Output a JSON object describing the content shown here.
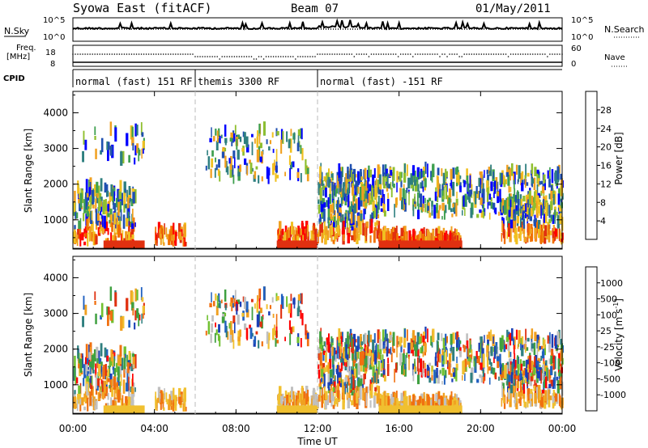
{
  "header": {
    "station": "Syowa East (fitACF)",
    "beam": "Beam 07",
    "date": "01/May/2011"
  },
  "strip_labels": {
    "nsky": "N.Sky",
    "nsky_top": "10^5",
    "nsky_bottom": "10^0",
    "nsearch": "N.Search",
    "nsearch_top": "10^5",
    "nsearch_bottom": "10^0",
    "freq_line1": "Freq.",
    "freq_line2": "[MHz]",
    "freq_top": "18",
    "freq_bottom": "8",
    "nave": "Nave",
    "nave_top": "60",
    "nave_bottom": "0",
    "cpid": "CPID"
  },
  "cpid_segments": [
    {
      "label": "normal (fast) 151 RF",
      "start_hour": 0,
      "end_hour": 6
    },
    {
      "label": "themis 3300 RF",
      "start_hour": 6,
      "end_hour": 12
    },
    {
      "label": "normal (fast) -151 RF",
      "start_hour": 12,
      "end_hour": 24
    }
  ],
  "colors": {
    "power_scale": [
      "#0000ff",
      "#1f4fb0",
      "#2e7f7f",
      "#3fa04f",
      "#8fbf2f",
      "#f0c020",
      "#f0a020",
      "#f07000",
      "#e03010",
      "#ff0000"
    ],
    "velocity_scale": [
      "#1a3fb5",
      "#2060c0",
      "#2f7f7f",
      "#3fa040",
      "#70c030",
      "#c0c0c0",
      "#f0c030",
      "#f0a020",
      "#f07010",
      "#e03010",
      "#ff0000"
    ]
  },
  "chart_data": [
    {
      "type": "heatmap",
      "name": "power-panel",
      "xlabel": "Time UT",
      "ylabel": "Slant Range [km]",
      "x_range_hours": [
        0,
        24
      ],
      "ylim": [
        180,
        4600
      ],
      "x_ticks": [
        "00:00",
        "04:00",
        "08:00",
        "12:00",
        "16:00",
        "20:00",
        "00:00"
      ],
      "y_ticks": [
        "1000",
        "2000",
        "3000",
        "4000"
      ],
      "colorbar": {
        "label": "Power [dB]",
        "tick_labels": [
          "4",
          "8",
          "12",
          "16",
          "20",
          "24",
          "28"
        ],
        "range": [
          0,
          30
        ]
      }
    },
    {
      "type": "heatmap",
      "name": "velocity-panel",
      "xlabel": "Time UT",
      "ylabel": "Slant Range [km]",
      "x_range_hours": [
        0,
        24
      ],
      "ylim": [
        180,
        4600
      ],
      "x_ticks": [
        "00:00",
        "04:00",
        "08:00",
        "12:00",
        "16:00",
        "20:00",
        "00:00"
      ],
      "y_ticks": [
        "1000",
        "2000",
        "3000",
        "4000"
      ],
      "colorbar": {
        "label_main": "Velocity [m s",
        "label_sup": "-1",
        "label_end": "]",
        "tick_labels": [
          "1000",
          "500",
          "100",
          "25",
          "-25",
          "-100",
          "-500",
          "-1000"
        ]
      }
    }
  ]
}
